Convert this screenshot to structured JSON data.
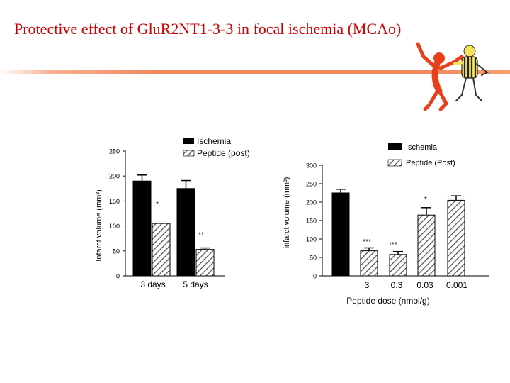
{
  "slide": {
    "title": "Protective effect of GluR2NT1-3-3 in focal ischemia (MCAo)"
  },
  "colors": {
    "title": "#cc0000",
    "underline": "#f08a60",
    "ischemia_bar": "#000000",
    "peptide_bar": "#ffffff"
  },
  "chart_data": [
    {
      "type": "bar",
      "categories": [
        "3 days",
        "5 days"
      ],
      "ylabel": "Infarct volume (mm³)",
      "yticks": [
        0,
        50,
        100,
        150,
        200,
        250
      ],
      "ylim": [
        0,
        250
      ],
      "legend_position": "top",
      "series": [
        {
          "name": "Ischemia",
          "fill": "solid-black",
          "values": [
            190,
            175
          ],
          "errors": [
            12,
            16
          ]
        },
        {
          "name": "Peptide (post)",
          "fill": "hatched",
          "values": [
            105,
            53
          ],
          "errors": [
            0,
            3
          ]
        }
      ],
      "annotations": [
        {
          "series": "Peptide (post)",
          "category": "3 days",
          "text": "*"
        },
        {
          "series": "Peptide (post)",
          "category": "5 days",
          "text": "**"
        }
      ]
    },
    {
      "type": "bar",
      "categories": [
        "",
        "3",
        "0.3",
        "0.03",
        "0.001"
      ],
      "xlabel": "Peptide dose (nmol/g)",
      "ylabel": "infarct volume (mm³)",
      "yticks": [
        0,
        50,
        100,
        150,
        200,
        250,
        300
      ],
      "ylim": [
        0,
        300
      ],
      "legend_position": "top-right",
      "series": [
        {
          "name": "Ischemia",
          "fill": "solid-black",
          "values": [
            225,
            null,
            null,
            null,
            null
          ],
          "errors": [
            10,
            null,
            null,
            null,
            null
          ]
        },
        {
          "name": "Peptide (Post)",
          "fill": "hatched",
          "values": [
            null,
            68,
            58,
            165,
            205
          ],
          "errors": [
            null,
            8,
            8,
            20,
            12
          ]
        }
      ],
      "annotations": [
        {
          "category": "3",
          "text": "***"
        },
        {
          "category": "0.3",
          "text": "***"
        },
        {
          "category": "0.03",
          "text": "*"
        }
      ]
    }
  ]
}
